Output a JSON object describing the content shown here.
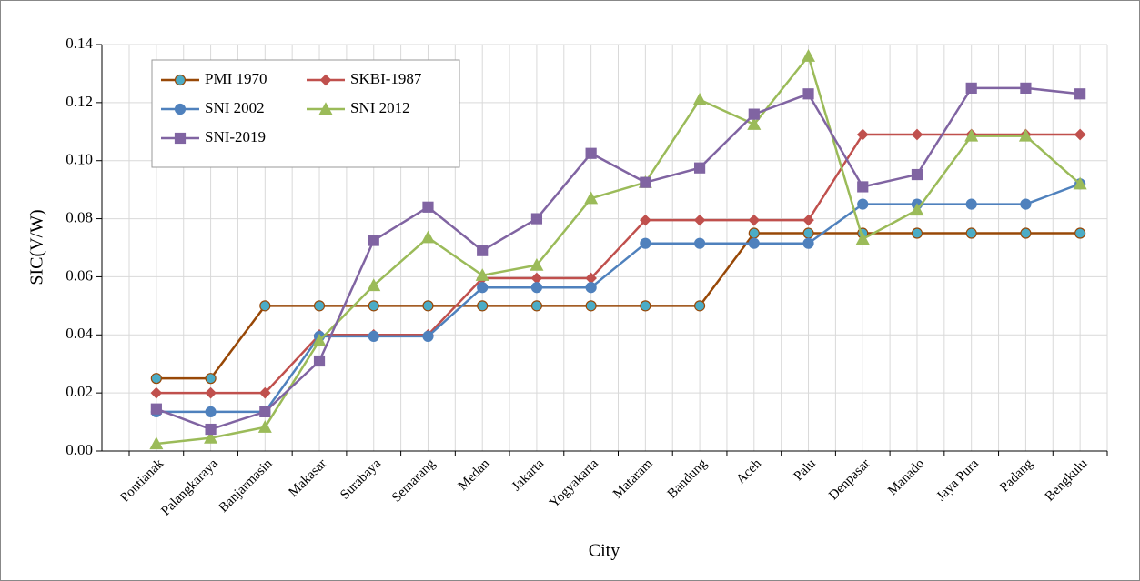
{
  "chart_data": {
    "type": "line",
    "y_label": "SIC(V/W)",
    "x_label": "City",
    "categories": [
      "Pontianak",
      "Palangkaraya",
      "Banjarmasin",
      "Makasar",
      "Surabaya",
      "Semarang",
      "Medan",
      "Jakarta",
      "Yogyakarta",
      "Mataram",
      "Bandung",
      "Aceh",
      "Palu",
      "Denpasar",
      "Manado",
      "Jaya Pura",
      "Padang",
      "Bengkulu"
    ],
    "series": [
      {
        "name": "PMI 1970",
        "color": "#984807",
        "marker": "circle",
        "marker_color": "#4bacc6",
        "values": [
          0.025,
          0.025,
          0.05,
          0.05,
          0.05,
          0.05,
          0.05,
          0.05,
          0.05,
          0.05,
          0.05,
          0.075,
          0.075,
          0.075,
          0.075,
          0.075,
          0.075,
          0.075
        ]
      },
      {
        "name": "SKBI-1987",
        "color": "#c0504d",
        "marker": "diamond",
        "marker_color": "#c0504d",
        "values": [
          0.02,
          0.02,
          0.02,
          0.04,
          0.04,
          0.04,
          0.0595,
          0.0595,
          0.0595,
          0.0795,
          0.0795,
          0.0795,
          0.0795,
          0.109,
          0.109,
          0.109,
          0.109,
          0.109
        ]
      },
      {
        "name": "SNI 2002",
        "color": "#4f81bd",
        "marker": "circle",
        "marker_color": "#4f81bd",
        "values": [
          0.0135,
          0.0135,
          0.0135,
          0.0395,
          0.0395,
          0.0395,
          0.0563,
          0.0563,
          0.0563,
          0.0715,
          0.0715,
          0.0715,
          0.0715,
          0.085,
          0.085,
          0.085,
          0.085,
          0.092
        ]
      },
      {
        "name": "SNI 2012",
        "color": "#9bbb59",
        "marker": "triangle",
        "marker_color": "#9bbb59",
        "values": [
          0.0025,
          0.0045,
          0.0082,
          0.038,
          0.057,
          0.0735,
          0.0605,
          0.064,
          0.087,
          0.0925,
          0.121,
          0.1125,
          0.136,
          0.073,
          0.083,
          0.1085,
          0.1085,
          0.092
        ]
      },
      {
        "name": "SNI-2019",
        "color": "#8064a2",
        "marker": "square",
        "marker_color": "#8064a2",
        "values": [
          0.0145,
          0.0075,
          0.0135,
          0.031,
          0.0725,
          0.084,
          0.069,
          0.08,
          0.1025,
          0.0925,
          0.0975,
          0.116,
          0.123,
          0.091,
          0.0952,
          0.125,
          0.125,
          0.123
        ]
      }
    ],
    "ylim": [
      0,
      0.14
    ],
    "yticks": [
      {
        "value": 0,
        "label": "0.00"
      },
      0.02,
      0.04,
      0.06,
      0.08,
      {
        "value": 0.1,
        "label": "0.10"
      },
      0.12,
      0.14
    ],
    "grid": true,
    "legend": "upper left"
  }
}
